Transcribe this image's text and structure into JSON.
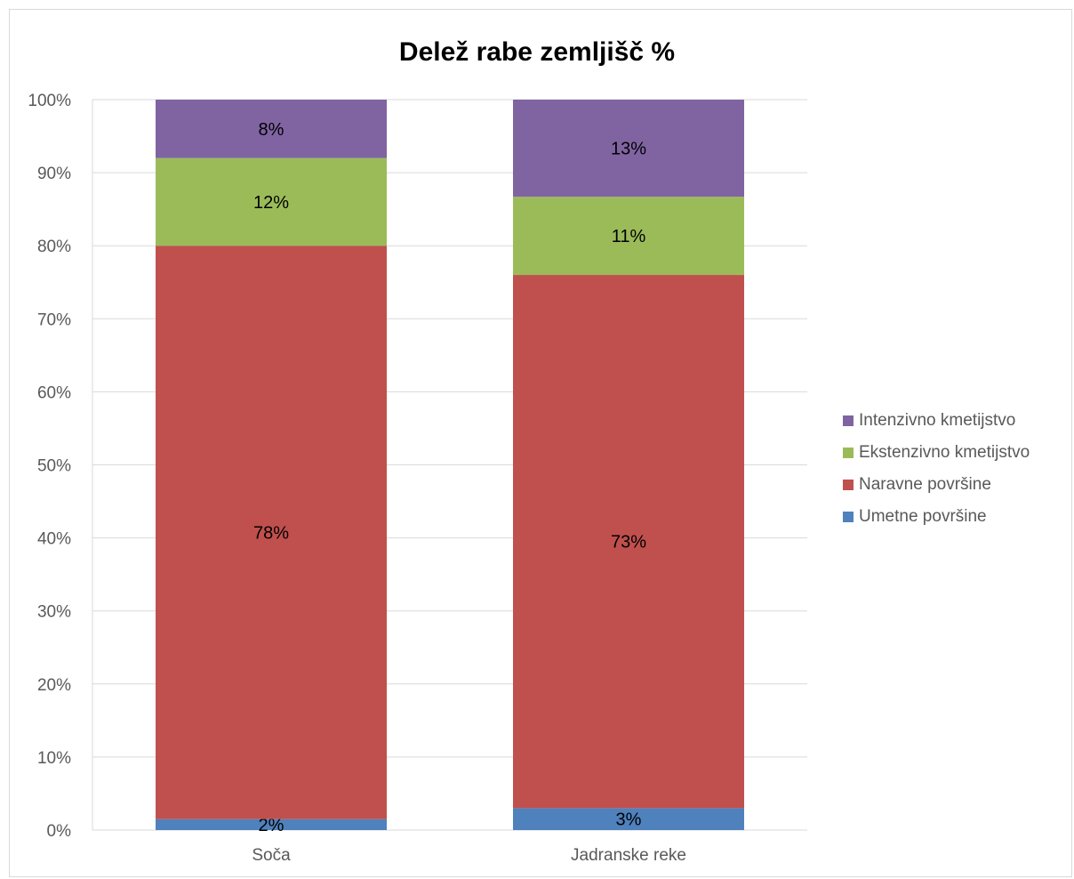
{
  "chart_data": {
    "type": "bar",
    "stacked": true,
    "title": "Delež rabe zemljišč %",
    "categories": [
      "Soča",
      "Jadranske reke"
    ],
    "series": [
      {
        "name": "Umetne površine",
        "color": "#4F81BD",
        "values": [
          1.5,
          3.0
        ],
        "labels": [
          "2%",
          "3%"
        ]
      },
      {
        "name": "Naravne površine",
        "color": "#C0504D",
        "values": [
          78.5,
          73.0
        ],
        "labels": [
          "78%",
          "73%"
        ]
      },
      {
        "name": "Ekstenzivno kmetijstvo",
        "color": "#9BBB59",
        "values": [
          12.0,
          10.7
        ],
        "labels": [
          "12%",
          "11%"
        ]
      },
      {
        "name": "Intenzivno kmetijstvo",
        "color": "#8064A2",
        "values": [
          8.0,
          13.3
        ],
        "labels": [
          "8%",
          "13%"
        ]
      }
    ],
    "yticks": [
      "0%",
      "10%",
      "20%",
      "30%",
      "40%",
      "50%",
      "60%",
      "70%",
      "80%",
      "90%",
      "100%"
    ],
    "ylim": [
      0,
      100
    ],
    "grid": true,
    "legend_position": "right",
    "legend_order": [
      "Intenzivno kmetijstvo",
      "Ekstenzivno kmetijstvo",
      "Naravne površine",
      "Umetne površine"
    ]
  }
}
